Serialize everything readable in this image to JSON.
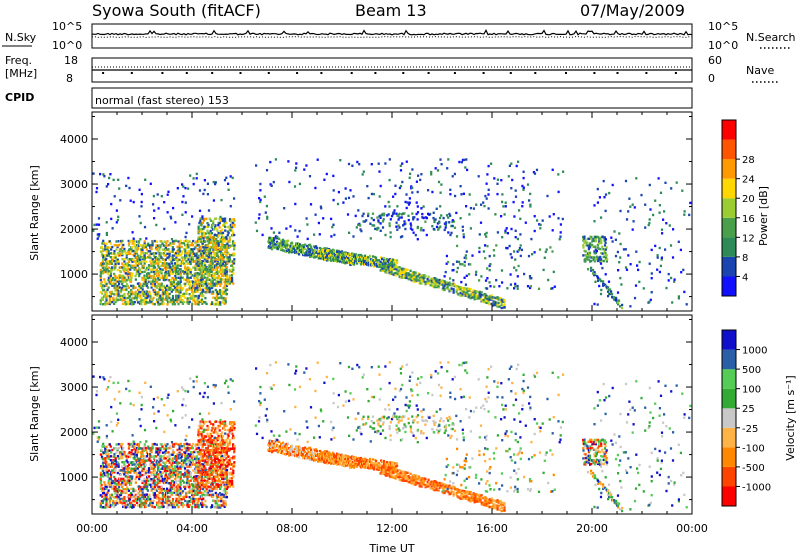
{
  "header": {
    "site": "Syowa South (fitACF)",
    "beam": "Beam 13",
    "date": "07/May/2009"
  },
  "status_panels": {
    "nsky_label": "N.Sky",
    "nsky_ticks": [
      "10^5",
      "10^0"
    ],
    "nsearch_label": "N.Search",
    "nsearch_ticks": [
      "10^5",
      "10^0"
    ],
    "freq_label_line1": "Freq.",
    "freq_label_line2": "[MHz]",
    "freq_ticks": [
      "18",
      "8"
    ],
    "nave_label": "Nave",
    "nave_ticks": [
      "60",
      "0"
    ],
    "cpid_label": "CPID",
    "cpid_text": "normal (fast stereo) 153"
  },
  "chart_data": [
    {
      "type": "heatmap",
      "name": "power",
      "ylabel": "Slant Range [km]",
      "xlabel": "",
      "xlim_hours": [
        0,
        24
      ],
      "ylim": [
        180,
        4600
      ],
      "yticks": [
        "1000",
        "2000",
        "3000",
        "4000"
      ],
      "colorbar_label": "Power [dB]",
      "colorbar_ticks": [
        "4",
        "8",
        "12",
        "16",
        "20",
        "24",
        "28"
      ],
      "colorbar_colors": [
        "#1010ff",
        "#1a44b0",
        "#2e8b57",
        "#4aa04a",
        "#9acd32",
        "#ffd700",
        "#ff9900",
        "#ff5500",
        "#ff0000"
      ]
    },
    {
      "type": "heatmap",
      "name": "velocity",
      "ylabel": "Slant Range [km]",
      "xlabel": "Time UT",
      "xlim_hours": [
        0,
        24
      ],
      "ylim": [
        180,
        4600
      ],
      "xticks": [
        "00:00",
        "04:00",
        "08:00",
        "12:00",
        "16:00",
        "20:00",
        "00:00"
      ],
      "yticks": [
        "1000",
        "2000",
        "3000",
        "4000"
      ],
      "colorbar_label": "Velocity [m s⁻¹]",
      "colorbar_ticks": [
        "-1000",
        "-500",
        "-100",
        "-25",
        "25",
        "100",
        "500",
        "1000"
      ],
      "colorbar_colors": [
        "#ff0000",
        "#ff4400",
        "#ff8800",
        "#ffb347",
        "#c8c8c8",
        "#33aa33",
        "#55cc55",
        "#2a5fa8",
        "#1010cc"
      ]
    }
  ]
}
